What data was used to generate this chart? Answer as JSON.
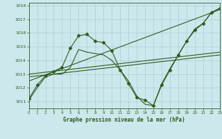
{
  "title": "Graphe pression niveau de la mer (hPa)",
  "bg_color": "#cce8ec",
  "grid_color": "#aacdd4",
  "line_color": "#2d5a1b",
  "x_min": 0,
  "x_max": 23,
  "y_min": 1010.5,
  "y_max": 1018.2,
  "y_ticks": [
    1011,
    1012,
    1013,
    1014,
    1015,
    1016,
    1017,
    1018
  ],
  "x_ticks": [
    0,
    1,
    2,
    3,
    4,
    5,
    6,
    7,
    8,
    9,
    10,
    11,
    12,
    13,
    14,
    15,
    16,
    17,
    18,
    19,
    20,
    21,
    22,
    23
  ],
  "series1": {
    "x": [
      0,
      1,
      2,
      3,
      4,
      5,
      6,
      7,
      8,
      9,
      10,
      11,
      12,
      13,
      14,
      15,
      16,
      17,
      18,
      19,
      20,
      21,
      22,
      23
    ],
    "y": [
      1011.2,
      1012.2,
      1012.9,
      1013.2,
      1013.5,
      1014.9,
      1015.8,
      1015.9,
      1015.4,
      1015.3,
      1014.7,
      1013.3,
      1012.3,
      1011.3,
      1011.1,
      1010.7,
      1012.2,
      1013.3,
      1014.4,
      1015.4,
      1016.2,
      1016.7,
      1017.5,
      1017.8
    ],
    "markersize": 2.5
  },
  "series2": {
    "x": [
      0,
      1,
      2,
      3,
      4,
      5,
      6,
      7,
      8,
      9,
      10,
      11,
      12,
      13,
      14,
      15,
      16,
      17,
      18,
      19,
      20,
      21,
      22,
      23
    ],
    "y": [
      1011.1,
      1012.0,
      1012.8,
      1013.0,
      1013.0,
      1013.5,
      1014.8,
      1014.6,
      1014.5,
      1014.4,
      1014.0,
      1013.3,
      1012.5,
      1011.4,
      1010.8,
      1010.7,
      1012.3,
      1013.4,
      1014.4,
      1015.4,
      1016.3,
      1016.7,
      1017.5,
      1017.8
    ]
  },
  "series3": {
    "x": [
      0,
      23
    ],
    "y": [
      1012.8,
      1014.4
    ]
  },
  "series4": {
    "x": [
      0,
      23
    ],
    "y": [
      1012.5,
      1017.7
    ]
  },
  "series5": {
    "x": [
      0,
      23
    ],
    "y": [
      1013.0,
      1014.6
    ]
  }
}
